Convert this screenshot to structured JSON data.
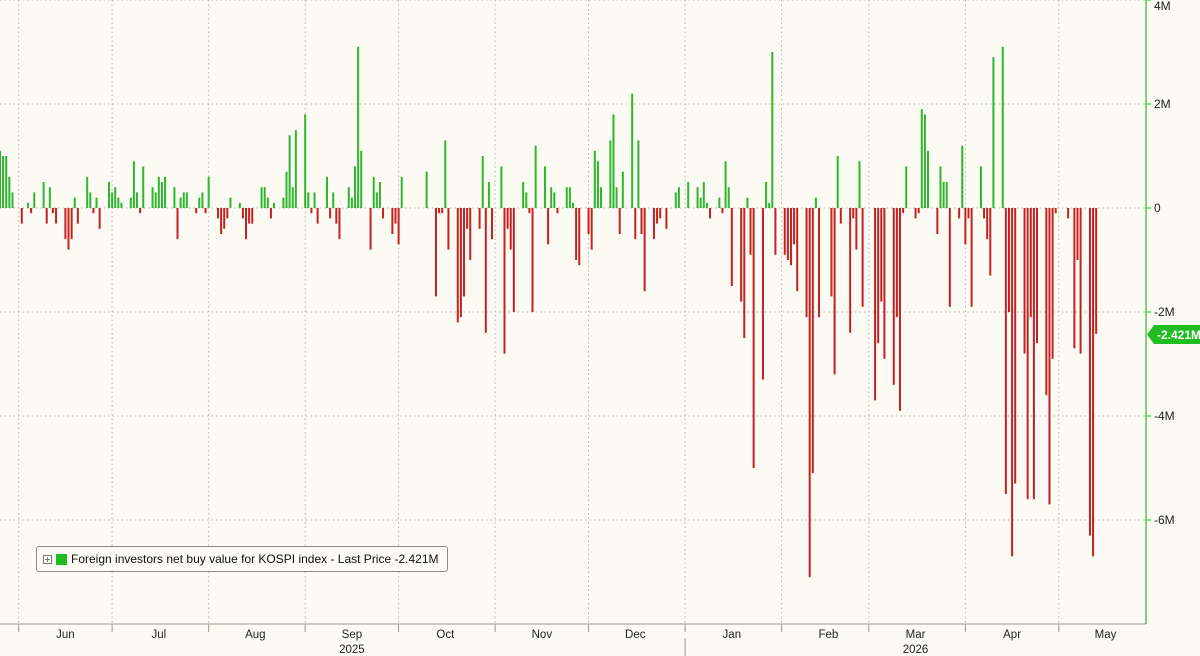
{
  "legend": {
    "label": "Foreign investors net buy value for KOSPI index - Last Price -2.421M",
    "swatch_color": "#1fbd1f",
    "expand_icon": "plus-box-icon"
  },
  "last_price_tag": "-2.421M",
  "chart_data": {
    "type": "bar",
    "title": "",
    "xlabel": "",
    "ylabel": "",
    "ylim": [
      -8000000,
      4000000
    ],
    "y_ticks": [
      {
        "value": 4000000,
        "label": "4M"
      },
      {
        "value": 2000000,
        "label": "2M"
      },
      {
        "value": 0,
        "label": "0"
      },
      {
        "value": -2000000,
        "label": "-2M"
      },
      {
        "value": -4000000,
        "label": "-4M"
      },
      {
        "value": -6000000,
        "label": "-6M"
      }
    ],
    "x_range": [
      "2025-05-26",
      "2026-05-29"
    ],
    "month_ticks": [
      {
        "label": "Jun",
        "date": "2025-06-16"
      },
      {
        "label": "Jul",
        "date": "2025-07-16"
      },
      {
        "label": "Aug",
        "date": "2025-08-16"
      },
      {
        "label": "Sep",
        "date": "2025-09-16"
      },
      {
        "label": "Oct",
        "date": "2025-10-16"
      },
      {
        "label": "Nov",
        "date": "2025-11-16"
      },
      {
        "label": "Dec",
        "date": "2025-12-16"
      },
      {
        "label": "Jan",
        "date": "2026-01-16"
      },
      {
        "label": "Feb",
        "date": "2026-02-16"
      },
      {
        "label": "Mar",
        "date": "2026-03-16"
      },
      {
        "label": "Apr",
        "date": "2026-04-16"
      },
      {
        "label": "May",
        "date": "2026-05-16"
      }
    ],
    "year_labels": [
      {
        "label": "2025",
        "date": "2025-09-16"
      },
      {
        "label": "2026",
        "date": "2026-03-16"
      }
    ],
    "year_divider_date": "2026-01-01",
    "positive_color": "#2fb52f",
    "negative_color": "#c42222",
    "grid": true,
    "legend_position": "bottom-left",
    "series": [
      {
        "name": "Foreign investors net buy value for KOSPI index",
        "unit": "KRW",
        "last_value": -2421000,
        "points": [
          [
            "2025-05-26",
            1100000
          ],
          [
            "2025-05-27",
            1000000
          ],
          [
            "2025-05-28",
            1000000
          ],
          [
            "2025-05-29",
            600000
          ],
          [
            "2025-05-30",
            300000
          ],
          [
            "2025-06-02",
            -300000
          ],
          [
            "2025-06-04",
            100000
          ],
          [
            "2025-06-05",
            -100000
          ],
          [
            "2025-06-06",
            300000
          ],
          [
            "2025-06-09",
            500000
          ],
          [
            "2025-06-10",
            -300000
          ],
          [
            "2025-06-11",
            400000
          ],
          [
            "2025-06-12",
            -100000
          ],
          [
            "2025-06-13",
            -300000
          ],
          [
            "2025-06-16",
            -600000
          ],
          [
            "2025-06-17",
            -800000
          ],
          [
            "2025-06-18",
            -600000
          ],
          [
            "2025-06-19",
            200000
          ],
          [
            "2025-06-20",
            -300000
          ],
          [
            "2025-06-23",
            600000
          ],
          [
            "2025-06-24",
            300000
          ],
          [
            "2025-06-25",
            -100000
          ],
          [
            "2025-06-26",
            200000
          ],
          [
            "2025-06-27",
            -400000
          ],
          [
            "2025-06-30",
            500000
          ],
          [
            "2025-07-01",
            300000
          ],
          [
            "2025-07-02",
            400000
          ],
          [
            "2025-07-03",
            200000
          ],
          [
            "2025-07-04",
            100000
          ],
          [
            "2025-07-07",
            200000
          ],
          [
            "2025-07-08",
            900000
          ],
          [
            "2025-07-09",
            300000
          ],
          [
            "2025-07-10",
            -100000
          ],
          [
            "2025-07-11",
            800000
          ],
          [
            "2025-07-14",
            400000
          ],
          [
            "2025-07-15",
            300000
          ],
          [
            "2025-07-16",
            600000
          ],
          [
            "2025-07-17",
            500000
          ],
          [
            "2025-07-18",
            600000
          ],
          [
            "2025-07-21",
            400000
          ],
          [
            "2025-07-22",
            -600000
          ],
          [
            "2025-07-23",
            200000
          ],
          [
            "2025-07-24",
            300000
          ],
          [
            "2025-07-25",
            300000
          ],
          [
            "2025-07-28",
            -100000
          ],
          [
            "2025-07-29",
            200000
          ],
          [
            "2025-07-30",
            300000
          ],
          [
            "2025-07-31",
            -100000
          ],
          [
            "2025-08-01",
            600000
          ],
          [
            "2025-08-04",
            -200000
          ],
          [
            "2025-08-05",
            -500000
          ],
          [
            "2025-08-06",
            -400000
          ],
          [
            "2025-08-07",
            -200000
          ],
          [
            "2025-08-08",
            200000
          ],
          [
            "2025-08-11",
            100000
          ],
          [
            "2025-08-12",
            -200000
          ],
          [
            "2025-08-13",
            -600000
          ],
          [
            "2025-08-14",
            -300000
          ],
          [
            "2025-08-15",
            -300000
          ],
          [
            "2025-08-18",
            400000
          ],
          [
            "2025-08-19",
            400000
          ],
          [
            "2025-08-20",
            200000
          ],
          [
            "2025-08-21",
            -200000
          ],
          [
            "2025-08-22",
            100000
          ],
          [
            "2025-08-25",
            200000
          ],
          [
            "2025-08-26",
            700000
          ],
          [
            "2025-08-27",
            1400000
          ],
          [
            "2025-08-28",
            400000
          ],
          [
            "2025-08-29",
            1500000
          ],
          [
            "2025-09-01",
            1800000
          ],
          [
            "2025-09-02",
            300000
          ],
          [
            "2025-09-03",
            -100000
          ],
          [
            "2025-09-04",
            300000
          ],
          [
            "2025-09-05",
            -300000
          ],
          [
            "2025-09-08",
            600000
          ],
          [
            "2025-09-09",
            -200000
          ],
          [
            "2025-09-10",
            300000
          ],
          [
            "2025-09-11",
            -300000
          ],
          [
            "2025-09-12",
            -600000
          ],
          [
            "2025-09-15",
            400000
          ],
          [
            "2025-09-16",
            200000
          ],
          [
            "2025-09-17",
            800000
          ],
          [
            "2025-09-18",
            3100000
          ],
          [
            "2025-09-19",
            1100000
          ],
          [
            "2025-09-22",
            -800000
          ],
          [
            "2025-09-23",
            600000
          ],
          [
            "2025-09-24",
            300000
          ],
          [
            "2025-09-25",
            500000
          ],
          [
            "2025-09-26",
            -200000
          ],
          [
            "2025-09-29",
            -500000
          ],
          [
            "2025-09-30",
            -300000
          ],
          [
            "2025-10-01",
            -700000
          ],
          [
            "2025-10-02",
            600000
          ],
          [
            "2025-10-10",
            700000
          ],
          [
            "2025-10-13",
            -1700000
          ],
          [
            "2025-10-14",
            -100000
          ],
          [
            "2025-10-15",
            -100000
          ],
          [
            "2025-10-16",
            1300000
          ],
          [
            "2025-10-17",
            -800000
          ],
          [
            "2025-10-20",
            -2200000
          ],
          [
            "2025-10-21",
            -2100000
          ],
          [
            "2025-10-22",
            -1700000
          ],
          [
            "2025-10-23",
            -400000
          ],
          [
            "2025-10-24",
            -1000000
          ],
          [
            "2025-10-27",
            -400000
          ],
          [
            "2025-10-28",
            1000000
          ],
          [
            "2025-10-29",
            -2400000
          ],
          [
            "2025-10-30",
            500000
          ],
          [
            "2025-10-31",
            -600000
          ],
          [
            "2025-11-03",
            800000
          ],
          [
            "2025-11-04",
            -2800000
          ],
          [
            "2025-11-05",
            -400000
          ],
          [
            "2025-11-06",
            -800000
          ],
          [
            "2025-11-07",
            -2000000
          ],
          [
            "2025-11-10",
            500000
          ],
          [
            "2025-11-11",
            300000
          ],
          [
            "2025-11-12",
            -100000
          ],
          [
            "2025-11-13",
            -2000000
          ],
          [
            "2025-11-14",
            1200000
          ],
          [
            "2025-11-17",
            800000
          ],
          [
            "2025-11-18",
            -700000
          ],
          [
            "2025-11-19",
            400000
          ],
          [
            "2025-11-20",
            300000
          ],
          [
            "2025-11-21",
            -100000
          ],
          [
            "2025-11-24",
            400000
          ],
          [
            "2025-11-25",
            400000
          ],
          [
            "2025-11-26",
            100000
          ],
          [
            "2025-11-27",
            -1000000
          ],
          [
            "2025-11-28",
            -1100000
          ],
          [
            "2025-12-01",
            -500000
          ],
          [
            "2025-12-02",
            -800000
          ],
          [
            "2025-12-03",
            1100000
          ],
          [
            "2025-12-04",
            900000
          ],
          [
            "2025-12-05",
            400000
          ],
          [
            "2025-12-08",
            1300000
          ],
          [
            "2025-12-09",
            1800000
          ],
          [
            "2025-12-10",
            400000
          ],
          [
            "2025-12-11",
            -500000
          ],
          [
            "2025-12-12",
            700000
          ],
          [
            "2025-12-15",
            2200000
          ],
          [
            "2025-12-16",
            -600000
          ],
          [
            "2025-12-17",
            1300000
          ],
          [
            "2025-12-18",
            -500000
          ],
          [
            "2025-12-19",
            -1600000
          ],
          [
            "2025-12-22",
            -600000
          ],
          [
            "2025-12-23",
            -300000
          ],
          [
            "2025-12-24",
            -200000
          ],
          [
            "2025-12-26",
            -400000
          ],
          [
            "2025-12-29",
            300000
          ],
          [
            "2025-12-30",
            400000
          ],
          [
            "2026-01-02",
            500000
          ],
          [
            "2026-01-05",
            400000
          ],
          [
            "2026-01-06",
            200000
          ],
          [
            "2026-01-07",
            500000
          ],
          [
            "2026-01-08",
            100000
          ],
          [
            "2026-01-09",
            -200000
          ],
          [
            "2026-01-12",
            200000
          ],
          [
            "2026-01-13",
            -100000
          ],
          [
            "2026-01-14",
            900000
          ],
          [
            "2026-01-15",
            400000
          ],
          [
            "2026-01-16",
            -1500000
          ],
          [
            "2026-01-19",
            -1800000
          ],
          [
            "2026-01-20",
            -2500000
          ],
          [
            "2026-01-21",
            200000
          ],
          [
            "2026-01-22",
            -900000
          ],
          [
            "2026-01-23",
            -5000000
          ],
          [
            "2026-01-26",
            -3300000
          ],
          [
            "2026-01-27",
            500000
          ],
          [
            "2026-01-28",
            100000
          ],
          [
            "2026-01-29",
            3000000
          ],
          [
            "2026-01-30",
            -900000
          ],
          [
            "2026-02-02",
            -900000
          ],
          [
            "2026-02-03",
            -1000000
          ],
          [
            "2026-02-04",
            -1100000
          ],
          [
            "2026-02-05",
            -700000
          ],
          [
            "2026-02-06",
            -1600000
          ],
          [
            "2026-02-09",
            -2100000
          ],
          [
            "2026-02-10",
            -7100000
          ],
          [
            "2026-02-11",
            -5100000
          ],
          [
            "2026-02-12",
            200000
          ],
          [
            "2026-02-13",
            -2100000
          ],
          [
            "2026-02-17",
            -1700000
          ],
          [
            "2026-02-18",
            -3200000
          ],
          [
            "2026-02-19",
            1000000
          ],
          [
            "2026-02-20",
            -300000
          ],
          [
            "2026-02-23",
            -2400000
          ],
          [
            "2026-02-24",
            -200000
          ],
          [
            "2026-02-25",
            -800000
          ],
          [
            "2026-02-26",
            900000
          ],
          [
            "2026-02-27",
            -1900000
          ],
          [
            "2026-03-03",
            -3700000
          ],
          [
            "2026-03-04",
            -2600000
          ],
          [
            "2026-03-05",
            -1800000
          ],
          [
            "2026-03-06",
            -2900000
          ],
          [
            "2026-03-09",
            -3400000
          ],
          [
            "2026-03-10",
            -2100000
          ],
          [
            "2026-03-11",
            -3900000
          ],
          [
            "2026-03-12",
            -100000
          ],
          [
            "2026-03-13",
            800000
          ],
          [
            "2026-03-16",
            -200000
          ],
          [
            "2026-03-17",
            -100000
          ],
          [
            "2026-03-18",
            1900000
          ],
          [
            "2026-03-19",
            1800000
          ],
          [
            "2026-03-20",
            1100000
          ],
          [
            "2026-03-23",
            -500000
          ],
          [
            "2026-03-24",
            800000
          ],
          [
            "2026-03-25",
            500000
          ],
          [
            "2026-03-26",
            500000
          ],
          [
            "2026-03-27",
            -1900000
          ],
          [
            "2026-03-30",
            -200000
          ],
          [
            "2026-03-31",
            1200000
          ],
          [
            "2026-04-01",
            -700000
          ],
          [
            "2026-04-02",
            -200000
          ],
          [
            "2026-04-03",
            -1900000
          ],
          [
            "2026-04-06",
            800000
          ],
          [
            "2026-04-07",
            -200000
          ],
          [
            "2026-04-08",
            -600000
          ],
          [
            "2026-04-09",
            -1300000
          ],
          [
            "2026-04-10",
            2900000
          ],
          [
            "2026-04-13",
            3100000
          ],
          [
            "2026-04-14",
            -5500000
          ],
          [
            "2026-04-15",
            -2000000
          ],
          [
            "2026-04-16",
            -6700000
          ],
          [
            "2026-04-17",
            -5300000
          ],
          [
            "2026-04-20",
            -2800000
          ],
          [
            "2026-04-21",
            -5600000
          ],
          [
            "2026-04-22",
            -2100000
          ],
          [
            "2026-04-23",
            -5600000
          ],
          [
            "2026-04-24",
            -2600000
          ],
          [
            "2026-04-27",
            -3600000
          ],
          [
            "2026-04-28",
            -5700000
          ],
          [
            "2026-04-29",
            -2900000
          ],
          [
            "2026-04-30",
            -100000
          ],
          [
            "2026-05-04",
            -200000
          ],
          [
            "2026-05-06",
            -2700000
          ],
          [
            "2026-05-07",
            -1000000
          ],
          [
            "2026-05-08",
            -2800000
          ],
          [
            "2026-05-11",
            -6300000
          ],
          [
            "2026-05-12",
            -6700000
          ],
          [
            "2026-05-13",
            -2421000
          ]
        ]
      }
    ]
  }
}
